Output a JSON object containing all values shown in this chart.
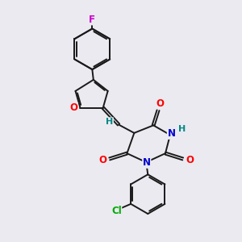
{
  "bg_color": "#eaeaf0",
  "bond_color": "#1a1a1a",
  "atom_colors": {
    "O": "#ff0000",
    "N": "#0000cc",
    "F": "#cc00cc",
    "Cl": "#00aa00",
    "H": "#008888",
    "C": "#1a1a1a"
  },
  "font_size": 8.5,
  "bond_width": 1.4,
  "figsize": [
    3.0,
    3.0
  ],
  "dpi": 100,
  "xlim": [
    0,
    10
  ],
  "ylim": [
    0,
    10
  ]
}
